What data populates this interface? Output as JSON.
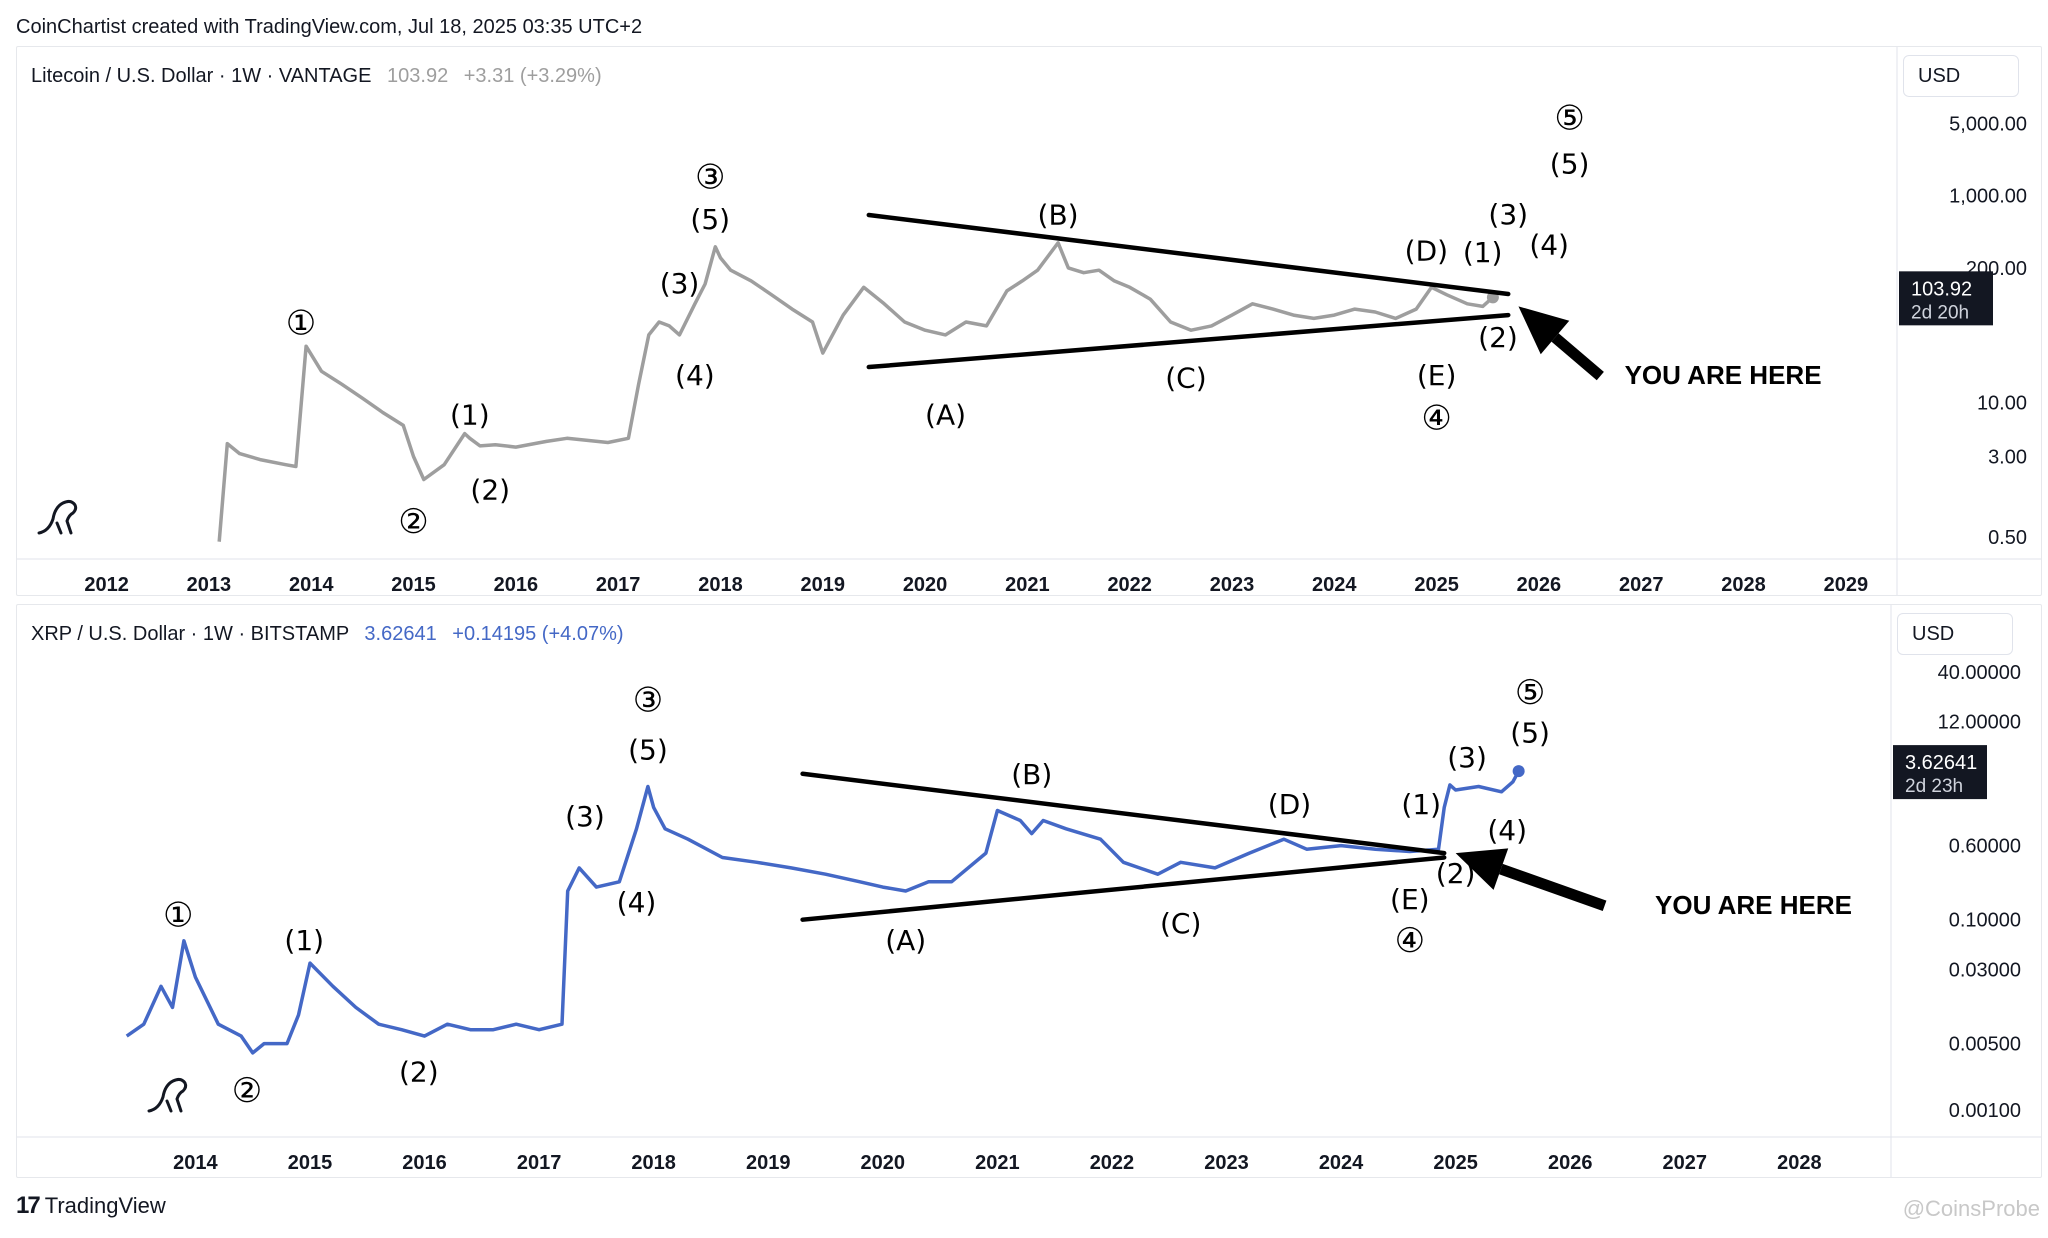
{
  "header": {
    "credit": "CoinChartist created with TradingView.com, Jul 18, 2025 03:35 UTC+2"
  },
  "footer": {
    "brand": "TradingView",
    "brand_mark": "17",
    "watermark": "@CoinsProbe"
  },
  "colors": {
    "ltc_line": "#9e9e9e",
    "xrp_line": "#4468c6",
    "trend": "#000000",
    "tag_bg": "#131722"
  },
  "chart_data": [
    {
      "type": "line",
      "title": "Litecoin / U.S. Dollar · 1W · VANTAGE",
      "price": "103.92",
      "change": "+3.31 (+3.29%)",
      "currency": "USD",
      "last_price_tag": "103.92",
      "countdown": "2d 20h",
      "yscale": "log",
      "ylim": [
        0.4,
        9000
      ],
      "xlim": [
        2011.3,
        2029.5
      ],
      "x_ticks": [
        "2012",
        "2013",
        "2014",
        "2015",
        "2016",
        "2017",
        "2018",
        "2019",
        "2020",
        "2021",
        "2022",
        "2023",
        "2024",
        "2025",
        "2026",
        "2027",
        "2028",
        "2029"
      ],
      "y_ticks": [
        {
          "v": 5000,
          "label": "5,000.00"
        },
        {
          "v": 1000,
          "label": "1,000.00"
        },
        {
          "v": 200,
          "label": "200.00"
        },
        {
          "v": 10,
          "label": "10.00"
        },
        {
          "v": 3,
          "label": "3.00"
        },
        {
          "v": 0.5,
          "label": "0.50"
        }
      ],
      "series": [
        {
          "x": [
            2013.1,
            2013.18,
            2013.3,
            2013.5,
            2013.75,
            2013.85,
            2013.95,
            2014.1,
            2014.3,
            2014.5,
            2014.7,
            2014.9,
            2015.0,
            2015.1,
            2015.3,
            2015.5,
            2015.55,
            2015.65,
            2015.8,
            2016.0,
            2016.3,
            2016.5,
            2016.7,
            2016.9,
            2017.1,
            2017.2,
            2017.3,
            2017.4,
            2017.5,
            2017.6,
            2017.75,
            2017.85,
            2017.95,
            2018.0,
            2018.1,
            2018.3,
            2018.5,
            2018.7,
            2018.9,
            2019.0,
            2019.2,
            2019.4,
            2019.6,
            2019.8,
            2020.0,
            2020.2,
            2020.4,
            2020.6,
            2020.8,
            2020.95,
            2021.1,
            2021.3,
            2021.4,
            2021.55,
            2021.7,
            2021.85,
            2022.0,
            2022.2,
            2022.4,
            2022.6,
            2022.8,
            2023.0,
            2023.2,
            2023.4,
            2023.6,
            2023.8,
            2024.0,
            2024.2,
            2024.4,
            2024.6,
            2024.8,
            2024.95,
            2025.1,
            2025.3,
            2025.45,
            2025.55
          ],
          "y": [
            0.45,
            4,
            3.2,
            2.8,
            2.5,
            2.4,
            35,
            20,
            15,
            11,
            8,
            6,
            3,
            1.8,
            2.5,
            5,
            4.5,
            3.8,
            3.9,
            3.7,
            4.2,
            4.5,
            4.3,
            4.1,
            4.5,
            15,
            45,
            60,
            55,
            45,
            90,
            140,
            320,
            250,
            190,
            150,
            110,
            80,
            60,
            30,
            70,
            130,
            90,
            60,
            50,
            45,
            60,
            55,
            120,
            150,
            190,
            350,
            200,
            180,
            190,
            150,
            130,
            100,
            60,
            50,
            55,
            70,
            90,
            80,
            70,
            65,
            70,
            80,
            75,
            65,
            80,
            130,
            110,
            90,
            85,
            103.92
          ]
        }
      ],
      "annotations": [
        {
          "text": "①",
          "x": 2013.9,
          "y": 58
        },
        {
          "text": "(1)",
          "x": 2015.55,
          "y": 7.5
        },
        {
          "text": "②",
          "x": 2015.0,
          "y": 0.7
        },
        {
          "text": "(2)",
          "x": 2015.75,
          "y": 1.4
        },
        {
          "text": "(3)",
          "x": 2017.6,
          "y": 140
        },
        {
          "text": "(4)",
          "x": 2017.75,
          "y": 18
        },
        {
          "text": "③",
          "x": 2017.9,
          "y": 1500
        },
        {
          "text": "(5)",
          "x": 2017.9,
          "y": 580
        },
        {
          "text": "(A)",
          "x": 2020.2,
          "y": 7.5
        },
        {
          "text": "(B)",
          "x": 2021.3,
          "y": 640
        },
        {
          "text": "(C)",
          "x": 2022.55,
          "y": 17
        },
        {
          "text": "(D)",
          "x": 2024.9,
          "y": 290
        },
        {
          "text": "(E)",
          "x": 2025.0,
          "y": 18
        },
        {
          "text": "④",
          "x": 2025.0,
          "y": 7
        },
        {
          "text": "(1)",
          "x": 2025.45,
          "y": 280
        },
        {
          "text": "(2)",
          "x": 2025.6,
          "y": 42
        },
        {
          "text": "(3)",
          "x": 2025.7,
          "y": 650
        },
        {
          "text": "(4)",
          "x": 2026.1,
          "y": 330
        },
        {
          "text": "(5)",
          "x": 2026.3,
          "y": 2000
        },
        {
          "text": "⑤",
          "x": 2026.3,
          "y": 5600
        }
      ],
      "callout": {
        "text": "YOU ARE HERE",
        "x": 2027.8,
        "y": 18
      },
      "arrow": {
        "from": [
          2026.6,
          18
        ],
        "to": [
          2025.8,
          85
        ]
      },
      "trendlines": [
        {
          "from": [
            2019.45,
            650
          ],
          "to": [
            2025.7,
            112
          ]
        },
        {
          "from": [
            2019.45,
            22
          ],
          "to": [
            2025.7,
            70
          ]
        }
      ]
    },
    {
      "type": "line",
      "title": "XRP / U.S. Dollar · 1W · BITSTAMP",
      "price": "3.62641",
      "change": "+0.14195 (+4.07%)",
      "currency": "USD",
      "last_price_tag": "3.62641",
      "countdown": "2d 23h",
      "yscale": "log",
      "ylim": [
        0.0007,
        60
      ],
      "xlim": [
        2012.6,
        2028.8
      ],
      "x_ticks": [
        "2014",
        "2015",
        "2016",
        "2017",
        "2018",
        "2019",
        "2020",
        "2021",
        "2022",
        "2023",
        "2024",
        "2025",
        "2026",
        "2027",
        "2028"
      ],
      "y_ticks": [
        {
          "v": 40,
          "label": "40.00000"
        },
        {
          "v": 12,
          "label": "12.00000"
        },
        {
          "v": 0.6,
          "label": "0.60000"
        },
        {
          "v": 0.1,
          "label": "0.10000"
        },
        {
          "v": 0.03,
          "label": "0.03000"
        },
        {
          "v": 0.005,
          "label": "0.00500"
        },
        {
          "v": 0.001,
          "label": "0.00100"
        }
      ],
      "series": [
        {
          "x": [
            2013.4,
            2013.55,
            2013.7,
            2013.8,
            2013.9,
            2014.0,
            2014.2,
            2014.4,
            2014.5,
            2014.6,
            2014.8,
            2014.9,
            2015.0,
            2015.2,
            2015.4,
            2015.6,
            2015.8,
            2016.0,
            2016.2,
            2016.4,
            2016.6,
            2016.8,
            2017.0,
            2017.2,
            2017.25,
            2017.35,
            2017.5,
            2017.7,
            2017.85,
            2017.95,
            2018.0,
            2018.1,
            2018.3,
            2018.6,
            2018.9,
            2019.2,
            2019.5,
            2019.8,
            2020.0,
            2020.2,
            2020.4,
            2020.6,
            2020.9,
            2021.0,
            2021.2,
            2021.3,
            2021.4,
            2021.6,
            2021.9,
            2022.1,
            2022.4,
            2022.6,
            2022.9,
            2023.2,
            2023.5,
            2023.7,
            2024.0,
            2024.3,
            2024.6,
            2024.85,
            2024.9,
            2024.95,
            2025.0,
            2025.2,
            2025.4,
            2025.5,
            2025.55
          ],
          "y": [
            0.006,
            0.008,
            0.02,
            0.012,
            0.06,
            0.025,
            0.008,
            0.006,
            0.004,
            0.005,
            0.005,
            0.01,
            0.035,
            0.02,
            0.012,
            0.008,
            0.007,
            0.006,
            0.008,
            0.007,
            0.007,
            0.008,
            0.007,
            0.008,
            0.2,
            0.35,
            0.22,
            0.25,
            0.9,
            2.5,
            1.5,
            0.9,
            0.7,
            0.45,
            0.4,
            0.35,
            0.3,
            0.25,
            0.22,
            0.2,
            0.25,
            0.25,
            0.5,
            1.4,
            1.1,
            0.8,
            1.1,
            0.9,
            0.7,
            0.4,
            0.3,
            0.4,
            0.35,
            0.5,
            0.7,
            0.55,
            0.6,
            0.55,
            0.52,
            0.55,
            1.5,
            2.6,
            2.3,
            2.5,
            2.2,
            2.8,
            3.62641
          ]
        }
      ],
      "annotations": [
        {
          "text": "①",
          "x": 2013.85,
          "y": 0.11
        },
        {
          "text": "(1)",
          "x": 2014.95,
          "y": 0.06
        },
        {
          "text": "②",
          "x": 2014.45,
          "y": 0.0016
        },
        {
          "text": "(2)",
          "x": 2015.95,
          "y": 0.0025
        },
        {
          "text": "(3)",
          "x": 2017.4,
          "y": 1.2
        },
        {
          "text": "(4)",
          "x": 2017.85,
          "y": 0.15
        },
        {
          "text": "③",
          "x": 2017.95,
          "y": 20
        },
        {
          "text": "(5)",
          "x": 2017.95,
          "y": 6
        },
        {
          "text": "(A)",
          "x": 2020.2,
          "y": 0.06
        },
        {
          "text": "(B)",
          "x": 2021.3,
          "y": 3.3
        },
        {
          "text": "(C)",
          "x": 2022.6,
          "y": 0.09
        },
        {
          "text": "(D)",
          "x": 2023.55,
          "y": 1.6
        },
        {
          "text": "(E)",
          "x": 2024.6,
          "y": 0.16
        },
        {
          "text": "④",
          "x": 2024.6,
          "y": 0.06
        },
        {
          "text": "(1)",
          "x": 2024.7,
          "y": 1.6
        },
        {
          "text": "(2)",
          "x": 2025.0,
          "y": 0.3
        },
        {
          "text": "(3)",
          "x": 2025.1,
          "y": 5
        },
        {
          "text": "(4)",
          "x": 2025.45,
          "y": 0.85
        },
        {
          "text": "(5)",
          "x": 2025.65,
          "y": 9
        },
        {
          "text": "⑤",
          "x": 2025.65,
          "y": 24
        }
      ],
      "callout": {
        "text": "YOU ARE HERE",
        "x": 2027.6,
        "y": 0.14
      },
      "arrow": {
        "from": [
          2026.3,
          0.14
        ],
        "to": [
          2025.0,
          0.5
        ]
      },
      "trendlines": [
        {
          "from": [
            2019.3,
            3.4
          ],
          "to": [
            2024.9,
            0.5
          ]
        },
        {
          "from": [
            2019.3,
            0.1
          ],
          "to": [
            2024.9,
            0.45
          ]
        }
      ]
    }
  ]
}
